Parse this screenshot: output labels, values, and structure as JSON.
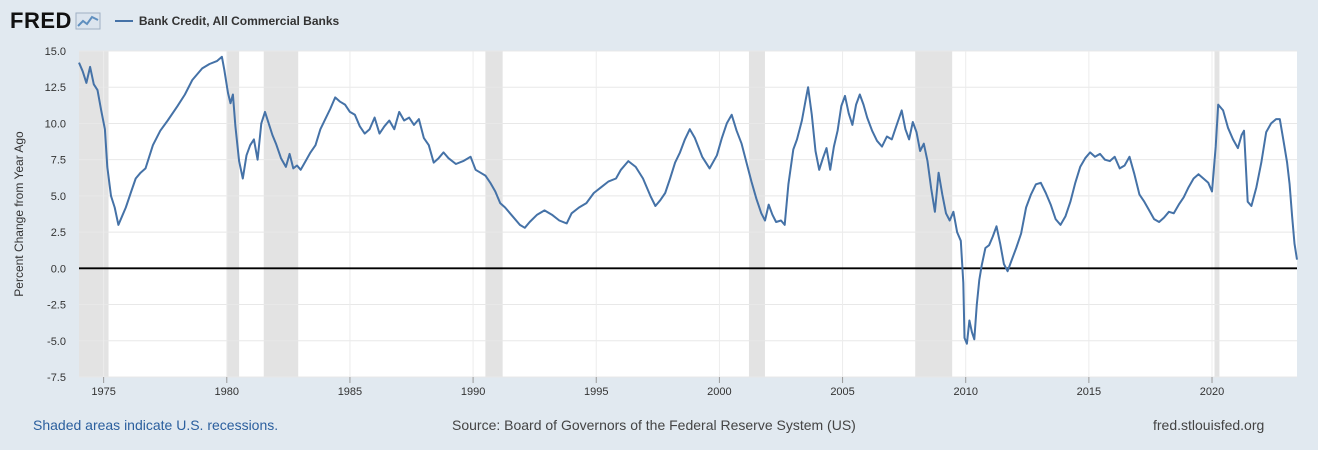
{
  "header": {
    "logo_text": "FRED",
    "legend_label": "Bank Credit, All Commercial Banks",
    "series_color": "#4572a7"
  },
  "footer": {
    "recession_note": "Shaded areas indicate U.S. recessions.",
    "source": "Source: Board of Governors of the Federal Reserve System (US)",
    "site": "fred.stlouisfed.org"
  },
  "chart_data": {
    "type": "line",
    "title": "",
    "ylabel": "Percent Change from Year Ago",
    "xlabel": "",
    "xlim": [
      1974.0,
      2023.45
    ],
    "ylim": [
      -7.5,
      15.0
    ],
    "x_ticks": [
      1975,
      1980,
      1985,
      1990,
      1995,
      2000,
      2005,
      2010,
      2015,
      2020
    ],
    "y_ticks": [
      15.0,
      12.5,
      10.0,
      7.5,
      5.0,
      2.5,
      0.0,
      -2.5,
      -5.0,
      -7.5
    ],
    "y_tick_labels": [
      "15.0",
      "12.5",
      "10.0",
      "7.5",
      "5.0",
      "2.5",
      "0.0",
      "-2.5",
      "-5.0",
      "-7.5"
    ],
    "grid": true,
    "zero_line": true,
    "recessions": [
      [
        1974.0,
        1975.2
      ],
      [
        1980.0,
        1980.5
      ],
      [
        1981.5,
        1982.9
      ],
      [
        1990.5,
        1991.2
      ],
      [
        2001.2,
        2001.85
      ],
      [
        2007.95,
        2009.45
      ],
      [
        2020.1,
        2020.3
      ]
    ],
    "series": [
      {
        "name": "Bank Credit, All Commercial Banks",
        "color": "#4572a7",
        "points": [
          [
            1974.0,
            14.2
          ],
          [
            1974.15,
            13.6
          ],
          [
            1974.3,
            12.8
          ],
          [
            1974.45,
            13.9
          ],
          [
            1974.6,
            12.7
          ],
          [
            1974.75,
            12.3
          ],
          [
            1974.9,
            10.9
          ],
          [
            1975.05,
            9.6
          ],
          [
            1975.15,
            7.0
          ],
          [
            1975.3,
            5.0
          ],
          [
            1975.45,
            4.2
          ],
          [
            1975.6,
            3.0
          ],
          [
            1975.75,
            3.6
          ],
          [
            1975.9,
            4.2
          ],
          [
            1976.1,
            5.2
          ],
          [
            1976.3,
            6.2
          ],
          [
            1976.5,
            6.6
          ],
          [
            1976.7,
            6.9
          ],
          [
            1977.0,
            8.5
          ],
          [
            1977.3,
            9.5
          ],
          [
            1977.6,
            10.2
          ],
          [
            1978.0,
            11.2
          ],
          [
            1978.3,
            12.0
          ],
          [
            1978.6,
            13.0
          ],
          [
            1979.0,
            13.8
          ],
          [
            1979.3,
            14.1
          ],
          [
            1979.6,
            14.3
          ],
          [
            1979.8,
            14.6
          ],
          [
            1979.9,
            13.7
          ],
          [
            1980.05,
            12.1
          ],
          [
            1980.15,
            11.4
          ],
          [
            1980.25,
            12.0
          ],
          [
            1980.35,
            9.8
          ],
          [
            1980.5,
            7.4
          ],
          [
            1980.65,
            6.2
          ],
          [
            1980.8,
            7.8
          ],
          [
            1980.95,
            8.5
          ],
          [
            1981.1,
            8.9
          ],
          [
            1981.25,
            7.5
          ],
          [
            1981.4,
            10.0
          ],
          [
            1981.55,
            10.8
          ],
          [
            1981.7,
            10.0
          ],
          [
            1981.85,
            9.2
          ],
          [
            1982.0,
            8.6
          ],
          [
            1982.2,
            7.6
          ],
          [
            1982.4,
            7.0
          ],
          [
            1982.55,
            7.9
          ],
          [
            1982.7,
            6.9
          ],
          [
            1982.85,
            7.1
          ],
          [
            1983.0,
            6.8
          ],
          [
            1983.2,
            7.4
          ],
          [
            1983.4,
            8.0
          ],
          [
            1983.6,
            8.5
          ],
          [
            1983.8,
            9.6
          ],
          [
            1984.0,
            10.3
          ],
          [
            1984.2,
            11.0
          ],
          [
            1984.4,
            11.8
          ],
          [
            1984.6,
            11.5
          ],
          [
            1984.8,
            11.3
          ],
          [
            1985.0,
            10.8
          ],
          [
            1985.2,
            10.6
          ],
          [
            1985.4,
            9.8
          ],
          [
            1985.6,
            9.3
          ],
          [
            1985.8,
            9.6
          ],
          [
            1986.0,
            10.4
          ],
          [
            1986.2,
            9.3
          ],
          [
            1986.4,
            9.8
          ],
          [
            1986.6,
            10.2
          ],
          [
            1986.8,
            9.6
          ],
          [
            1987.0,
            10.8
          ],
          [
            1987.2,
            10.2
          ],
          [
            1987.4,
            10.4
          ],
          [
            1987.6,
            9.9
          ],
          [
            1987.8,
            10.3
          ],
          [
            1988.0,
            9.0
          ],
          [
            1988.2,
            8.5
          ],
          [
            1988.4,
            7.3
          ],
          [
            1988.6,
            7.6
          ],
          [
            1988.8,
            8.0
          ],
          [
            1989.0,
            7.6
          ],
          [
            1989.3,
            7.2
          ],
          [
            1989.6,
            7.4
          ],
          [
            1989.9,
            7.7
          ],
          [
            1990.1,
            6.8
          ],
          [
            1990.3,
            6.6
          ],
          [
            1990.5,
            6.4
          ],
          [
            1990.7,
            5.9
          ],
          [
            1990.9,
            5.3
          ],
          [
            1991.1,
            4.5
          ],
          [
            1991.3,
            4.2
          ],
          [
            1991.6,
            3.6
          ],
          [
            1991.9,
            3.0
          ],
          [
            1992.1,
            2.8
          ],
          [
            1992.3,
            3.2
          ],
          [
            1992.6,
            3.7
          ],
          [
            1992.9,
            4.0
          ],
          [
            1993.2,
            3.7
          ],
          [
            1993.5,
            3.3
          ],
          [
            1993.8,
            3.1
          ],
          [
            1994.0,
            3.8
          ],
          [
            1994.3,
            4.2
          ],
          [
            1994.6,
            4.5
          ],
          [
            1994.9,
            5.2
          ],
          [
            1995.2,
            5.6
          ],
          [
            1995.5,
            6.0
          ],
          [
            1995.8,
            6.2
          ],
          [
            1996.0,
            6.8
          ],
          [
            1996.3,
            7.4
          ],
          [
            1996.6,
            7.0
          ],
          [
            1996.9,
            6.2
          ],
          [
            1997.2,
            5.0
          ],
          [
            1997.4,
            4.3
          ],
          [
            1997.6,
            4.7
          ],
          [
            1997.8,
            5.2
          ],
          [
            1998.0,
            6.2
          ],
          [
            1998.2,
            7.3
          ],
          [
            1998.4,
            8.0
          ],
          [
            1998.6,
            8.9
          ],
          [
            1998.8,
            9.6
          ],
          [
            1999.0,
            9.0
          ],
          [
            1999.3,
            7.7
          ],
          [
            1999.6,
            6.9
          ],
          [
            1999.9,
            7.8
          ],
          [
            2000.1,
            9.0
          ],
          [
            2000.3,
            10.0
          ],
          [
            2000.5,
            10.6
          ],
          [
            2000.7,
            9.5
          ],
          [
            2000.9,
            8.6
          ],
          [
            2001.1,
            7.3
          ],
          [
            2001.3,
            6.0
          ],
          [
            2001.5,
            4.8
          ],
          [
            2001.7,
            3.8
          ],
          [
            2001.85,
            3.3
          ],
          [
            2002.0,
            4.4
          ],
          [
            2002.15,
            3.7
          ],
          [
            2002.3,
            3.2
          ],
          [
            2002.5,
            3.3
          ],
          [
            2002.65,
            3.0
          ],
          [
            2002.8,
            5.8
          ],
          [
            2003.0,
            8.2
          ],
          [
            2003.15,
            8.9
          ],
          [
            2003.35,
            10.2
          ],
          [
            2003.5,
            11.6
          ],
          [
            2003.6,
            12.5
          ],
          [
            2003.75,
            10.6
          ],
          [
            2003.9,
            8.1
          ],
          [
            2004.05,
            6.8
          ],
          [
            2004.2,
            7.6
          ],
          [
            2004.35,
            8.3
          ],
          [
            2004.5,
            6.8
          ],
          [
            2004.65,
            8.4
          ],
          [
            2004.8,
            9.5
          ],
          [
            2004.95,
            11.2
          ],
          [
            2005.1,
            11.9
          ],
          [
            2005.25,
            10.7
          ],
          [
            2005.4,
            9.9
          ],
          [
            2005.55,
            11.3
          ],
          [
            2005.7,
            12.0
          ],
          [
            2005.85,
            11.3
          ],
          [
            2006.0,
            10.4
          ],
          [
            2006.2,
            9.5
          ],
          [
            2006.4,
            8.8
          ],
          [
            2006.6,
            8.4
          ],
          [
            2006.8,
            9.1
          ],
          [
            2007.0,
            8.9
          ],
          [
            2007.2,
            9.9
          ],
          [
            2007.4,
            10.9
          ],
          [
            2007.55,
            9.6
          ],
          [
            2007.7,
            8.9
          ],
          [
            2007.85,
            10.1
          ],
          [
            2008.0,
            9.4
          ],
          [
            2008.15,
            8.1
          ],
          [
            2008.3,
            8.6
          ],
          [
            2008.45,
            7.4
          ],
          [
            2008.6,
            5.5
          ],
          [
            2008.75,
            3.9
          ],
          [
            2008.9,
            6.6
          ],
          [
            2009.05,
            5.1
          ],
          [
            2009.2,
            3.8
          ],
          [
            2009.35,
            3.3
          ],
          [
            2009.5,
            3.9
          ],
          [
            2009.65,
            2.5
          ],
          [
            2009.8,
            1.9
          ],
          [
            2009.9,
            -1.0
          ],
          [
            2009.95,
            -4.8
          ],
          [
            2010.05,
            -5.2
          ],
          [
            2010.15,
            -3.6
          ],
          [
            2010.25,
            -4.4
          ],
          [
            2010.35,
            -4.9
          ],
          [
            2010.45,
            -2.5
          ],
          [
            2010.55,
            -0.8
          ],
          [
            2010.65,
            0.2
          ],
          [
            2010.8,
            1.4
          ],
          [
            2010.95,
            1.6
          ],
          [
            2011.1,
            2.2
          ],
          [
            2011.25,
            2.9
          ],
          [
            2011.4,
            1.7
          ],
          [
            2011.55,
            0.3
          ],
          [
            2011.7,
            -0.2
          ],
          [
            2011.85,
            0.5
          ],
          [
            2012.05,
            1.4
          ],
          [
            2012.25,
            2.4
          ],
          [
            2012.45,
            4.2
          ],
          [
            2012.65,
            5.1
          ],
          [
            2012.85,
            5.8
          ],
          [
            2013.05,
            5.9
          ],
          [
            2013.25,
            5.2
          ],
          [
            2013.45,
            4.4
          ],
          [
            2013.65,
            3.4
          ],
          [
            2013.85,
            3.0
          ],
          [
            2014.05,
            3.6
          ],
          [
            2014.25,
            4.6
          ],
          [
            2014.45,
            5.9
          ],
          [
            2014.65,
            7.0
          ],
          [
            2014.85,
            7.6
          ],
          [
            2015.05,
            8.0
          ],
          [
            2015.25,
            7.7
          ],
          [
            2015.45,
            7.9
          ],
          [
            2015.65,
            7.5
          ],
          [
            2015.85,
            7.4
          ],
          [
            2016.05,
            7.7
          ],
          [
            2016.25,
            6.9
          ],
          [
            2016.45,
            7.1
          ],
          [
            2016.65,
            7.7
          ],
          [
            2016.85,
            6.5
          ],
          [
            2017.05,
            5.1
          ],
          [
            2017.25,
            4.6
          ],
          [
            2017.45,
            4.0
          ],
          [
            2017.65,
            3.4
          ],
          [
            2017.85,
            3.2
          ],
          [
            2018.05,
            3.5
          ],
          [
            2018.25,
            3.9
          ],
          [
            2018.45,
            3.8
          ],
          [
            2018.65,
            4.4
          ],
          [
            2018.85,
            4.9
          ],
          [
            2019.05,
            5.6
          ],
          [
            2019.25,
            6.2
          ],
          [
            2019.45,
            6.5
          ],
          [
            2019.65,
            6.2
          ],
          [
            2019.85,
            5.9
          ],
          [
            2020.0,
            5.3
          ],
          [
            2020.15,
            8.4
          ],
          [
            2020.25,
            11.3
          ],
          [
            2020.45,
            10.9
          ],
          [
            2020.65,
            9.7
          ],
          [
            2020.85,
            8.9
          ],
          [
            2021.05,
            8.3
          ],
          [
            2021.2,
            9.2
          ],
          [
            2021.3,
            9.5
          ],
          [
            2021.45,
            4.6
          ],
          [
            2021.6,
            4.3
          ],
          [
            2021.8,
            5.6
          ],
          [
            2022.0,
            7.3
          ],
          [
            2022.2,
            9.4
          ],
          [
            2022.4,
            10.0
          ],
          [
            2022.6,
            10.3
          ],
          [
            2022.75,
            10.3
          ],
          [
            2022.9,
            8.8
          ],
          [
            2023.05,
            7.3
          ],
          [
            2023.15,
            5.8
          ],
          [
            2023.25,
            3.6
          ],
          [
            2023.35,
            1.7
          ],
          [
            2023.45,
            0.6
          ]
        ]
      }
    ]
  }
}
